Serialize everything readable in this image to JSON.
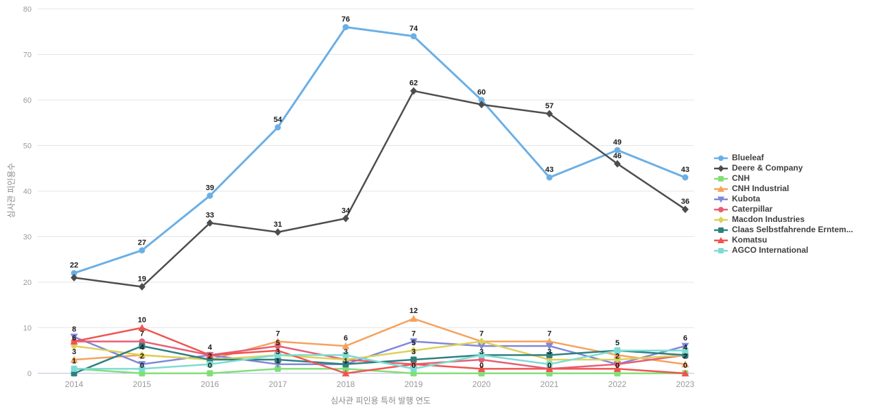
{
  "chart_data": {
    "type": "line",
    "x": [
      "2014",
      "2015",
      "2016",
      "2017",
      "2018",
      "2019",
      "2020",
      "2021",
      "2022",
      "2023"
    ],
    "xlabel": "심사관 피인용 특허 발행 연도",
    "ylabel": "심사관 피인용수",
    "ylim": [
      0,
      80
    ],
    "y_ticks": [
      0,
      10,
      20,
      30,
      40,
      50,
      60,
      70,
      80
    ],
    "grid": true,
    "legend_position": "right",
    "series": [
      {
        "name": "Blueleaf",
        "color": "#6AAFE6",
        "marker": "circle",
        "values": [
          22,
          27,
          39,
          54,
          76,
          74,
          60,
          43,
          49,
          43
        ],
        "labels_shown": [
          true,
          true,
          true,
          true,
          true,
          true,
          true,
          true,
          true,
          true
        ]
      },
      {
        "name": "Deere & Company",
        "color": "#4D4D4D",
        "marker": "diamond",
        "values": [
          21,
          19,
          33,
          31,
          34,
          62,
          59,
          57,
          46,
          36
        ],
        "labels_shown": [
          false,
          true,
          true,
          true,
          true,
          true,
          false,
          true,
          true,
          true
        ]
      },
      {
        "name": "CNH",
        "color": "#82DE77",
        "marker": "rect",
        "values": [
          1,
          0,
          0,
          1,
          1,
          0,
          0,
          0,
          0,
          0
        ],
        "labels_shown": [
          false,
          true,
          true,
          true,
          true,
          true,
          true,
          true,
          true,
          false
        ]
      },
      {
        "name": "CNH Industrial",
        "color": "#F5A25D",
        "marker": "triangle-up",
        "values": [
          3,
          4,
          3,
          7,
          6,
          12,
          7,
          7,
          4,
          2
        ],
        "labels_shown": [
          true,
          true,
          false,
          true,
          true,
          true,
          false,
          true,
          false,
          true
        ]
      },
      {
        "name": "Kubota",
        "color": "#8187DB",
        "marker": "triangle-down",
        "values": [
          8,
          2,
          4,
          2,
          2,
          7,
          6,
          6,
          2,
          6
        ],
        "labels_shown": [
          true,
          true,
          true,
          false,
          false,
          true,
          false,
          false,
          true,
          true
        ]
      },
      {
        "name": "Caterpillar",
        "color": "#E85D75",
        "marker": "circle",
        "values": [
          7,
          7,
          4,
          6,
          3,
          2,
          3,
          1,
          2,
          4
        ],
        "labels_shown": [
          false,
          true,
          false,
          false,
          true,
          false,
          true,
          false,
          false,
          false
        ]
      },
      {
        "name": "Macdon Industries",
        "color": "#DCD15A",
        "marker": "diamond",
        "values": [
          6,
          4,
          3,
          4,
          3,
          5,
          7,
          3,
          3,
          4
        ],
        "labels_shown": [
          true,
          false,
          false,
          false,
          false,
          true,
          true,
          true,
          false,
          false
        ]
      },
      {
        "name": "Claas Selbstfahrende Erntem...",
        "color": "#2E8080",
        "marker": "rect",
        "values": [
          0,
          6,
          3,
          3,
          2,
          3,
          4,
          4,
          5,
          4
        ],
        "labels_shown": [
          false,
          false,
          false,
          true,
          false,
          true,
          false,
          false,
          true,
          true
        ]
      },
      {
        "name": "Komatsu",
        "color": "#F0534F",
        "marker": "triangle-up",
        "values": [
          7,
          10,
          4,
          5,
          0,
          2,
          1,
          1,
          1,
          0
        ],
        "labels_shown": [
          false,
          true,
          false,
          true,
          false,
          false,
          false,
          false,
          false,
          true
        ]
      },
      {
        "name": "AGCO International",
        "color": "#7CDCD2",
        "marker": "rect",
        "values": [
          1,
          1,
          2,
          4,
          4,
          1,
          4,
          2,
          5,
          5
        ],
        "labels_shown": [
          true,
          false,
          true,
          false,
          false,
          false,
          false,
          false,
          false,
          false
        ]
      }
    ]
  },
  "axes": {
    "x_title": "심사관 피인용 특허 발행 연도",
    "y_title": "심사관 피인용수"
  },
  "style": {
    "grid_color": "#e5e5e5",
    "axis_line_color": "#b3bedf",
    "tick_label_color": "#999999",
    "data_label_color": "#1a1a1a"
  }
}
